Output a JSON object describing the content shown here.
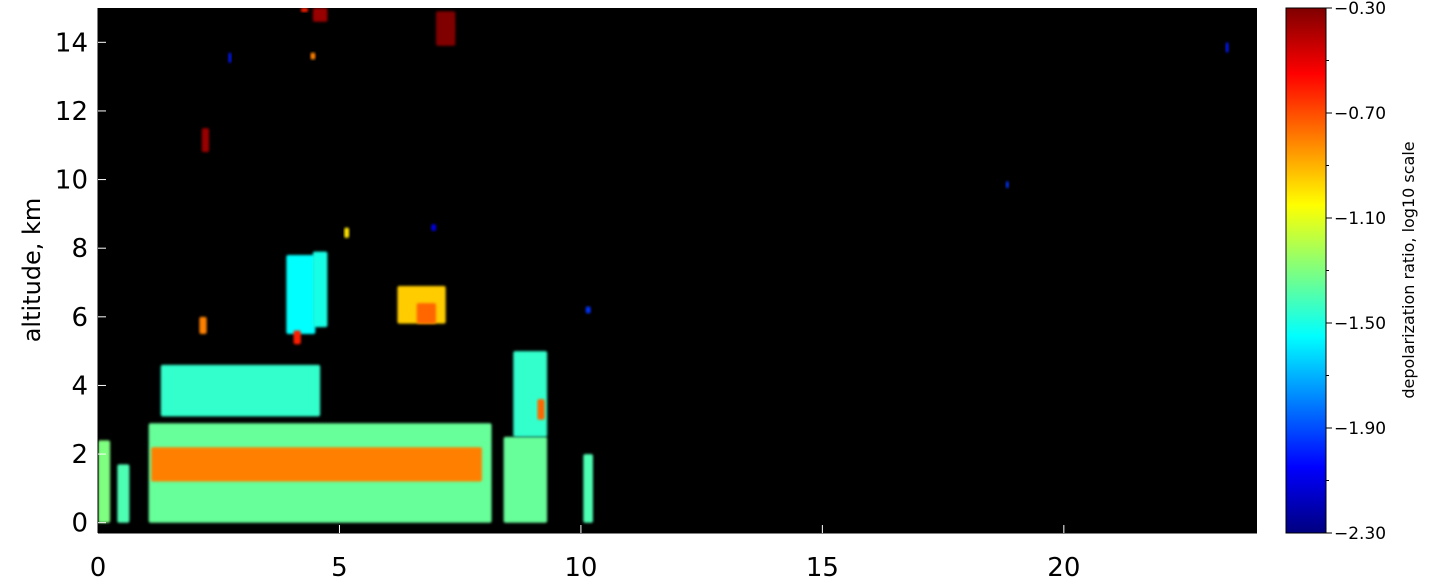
{
  "chart_data": {
    "type": "heatmap",
    "title": "",
    "xlabel": "",
    "ylabel": "altitude, km",
    "xlim": [
      0,
      24
    ],
    "ylim": [
      -0.3,
      15
    ],
    "x_ticks": [
      0,
      5,
      10,
      15,
      20
    ],
    "y_ticks": [
      0,
      2,
      4,
      6,
      8,
      10,
      12,
      14
    ],
    "background": "#000000",
    "colorbar": {
      "label": "depolarization ratio, log10 scale",
      "range": [
        -2.3,
        -0.3
      ],
      "ticks": [
        -0.3,
        -0.7,
        -1.1,
        -1.5,
        -1.9,
        -2.3
      ],
      "tick_labels": [
        "−0.30",
        "−0.70",
        "−1.10",
        "−1.50",
        "−1.90",
        "−2.30"
      ],
      "colormap": "jet"
    },
    "features": [
      {
        "x0": 1.05,
        "x1": 8.15,
        "y0": 0.0,
        "y1": 2.9,
        "value": -1.35
      },
      {
        "x0": 1.1,
        "x1": 7.95,
        "y0": 1.2,
        "y1": 2.2,
        "value": -0.8
      },
      {
        "x0": 0.0,
        "x1": 0.25,
        "y0": 0.0,
        "y1": 2.4,
        "value": -1.3
      },
      {
        "x0": 0.4,
        "x1": 0.65,
        "y0": 0.0,
        "y1": 1.7,
        "value": -1.4
      },
      {
        "x0": 8.4,
        "x1": 9.3,
        "y0": 0.0,
        "y1": 2.5,
        "value": -1.35
      },
      {
        "x0": 8.6,
        "x1": 9.3,
        "y0": 2.5,
        "y1": 5.0,
        "value": -1.45
      },
      {
        "x0": 9.1,
        "x1": 9.25,
        "y0": 3.0,
        "y1": 3.6,
        "value": -0.75
      },
      {
        "x0": 10.05,
        "x1": 10.25,
        "y0": 0.0,
        "y1": 2.0,
        "value": -1.4
      },
      {
        "x0": 1.3,
        "x1": 4.6,
        "y0": 3.1,
        "y1": 4.6,
        "value": -1.45
      },
      {
        "x0": 3.9,
        "x1": 4.5,
        "y0": 5.5,
        "y1": 7.8,
        "value": -1.55
      },
      {
        "x0": 4.45,
        "x1": 4.75,
        "y0": 5.7,
        "y1": 7.9,
        "value": -1.5
      },
      {
        "x0": 6.2,
        "x1": 7.2,
        "y0": 5.8,
        "y1": 6.9,
        "value": -0.95
      },
      {
        "x0": 6.6,
        "x1": 7.0,
        "y0": 5.8,
        "y1": 6.4,
        "value": -0.75
      },
      {
        "x0": 2.15,
        "x1": 2.3,
        "y0": 10.8,
        "y1": 11.5,
        "value": -0.35
      },
      {
        "x0": 4.45,
        "x1": 4.75,
        "y0": 14.6,
        "y1": 15.0,
        "value": -0.35
      },
      {
        "x0": 7.0,
        "x1": 7.4,
        "y0": 13.9,
        "y1": 14.9,
        "value": -0.3
      },
      {
        "x0": 7.15,
        "x1": 7.35,
        "y0": 14.2,
        "y1": 14.7,
        "value": -0.2
      },
      {
        "x0": 4.2,
        "x1": 4.35,
        "y0": 15.0,
        "y1": 15.0,
        "value": -0.6
      },
      {
        "x0": 2.1,
        "x1": 2.25,
        "y0": 5.5,
        "y1": 6.0,
        "value": -0.8
      },
      {
        "x0": 4.05,
        "x1": 4.2,
        "y0": 5.2,
        "y1": 5.6,
        "value": -0.6
      },
      {
        "x0": 5.1,
        "x1": 5.2,
        "y0": 8.3,
        "y1": 8.6,
        "value": -1.0
      },
      {
        "x0": 4.4,
        "x1": 4.5,
        "y0": 13.5,
        "y1": 13.7,
        "value": -0.8
      },
      {
        "x0": 2.7,
        "x1": 2.75,
        "y0": 13.4,
        "y1": 13.7,
        "value": -2.0
      },
      {
        "x0": 6.9,
        "x1": 7.0,
        "y0": 8.5,
        "y1": 8.7,
        "value": -2.1
      },
      {
        "x0": 23.35,
        "x1": 23.4,
        "y0": 13.7,
        "y1": 14.0,
        "value": -2.0
      },
      {
        "x0": 18.8,
        "x1": 18.85,
        "y0": 9.75,
        "y1": 9.95,
        "value": -1.95
      },
      {
        "x0": 10.1,
        "x1": 10.2,
        "y0": 6.1,
        "y1": 6.3,
        "value": -1.95
      }
    ]
  }
}
